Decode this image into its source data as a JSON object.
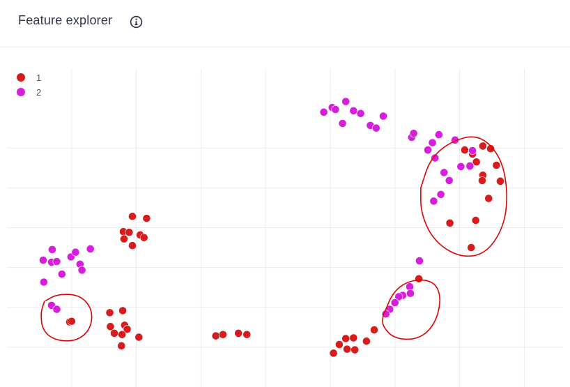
{
  "header": {
    "title": "Feature explorer",
    "info_icon": "info-circle-icon"
  },
  "colors": {
    "series_1": "#d61c1c",
    "series_2": "#d61fdc",
    "annotation": "#e00000",
    "grid": "#ebebeb",
    "title": "#2f3551"
  },
  "chart_data": {
    "type": "scatter",
    "title": "",
    "xlabel": "",
    "ylabel": "",
    "xlim": [
      0,
      860
    ],
    "ylim": [
      0,
      480
    ],
    "grid": true,
    "tick_labels_visible": false,
    "legend": {
      "placement": "top-left",
      "entries": [
        "1",
        "2"
      ]
    },
    "series": [
      {
        "name": "1",
        "x": [
          194,
          216,
          180,
          189,
          206,
          181,
          212,
          194,
          97,
          100,
          159,
          179,
          182,
          160,
          166,
          186,
          178,
          204,
          177,
          323,
          334,
          358,
          371,
          505,
          514,
          524,
          536,
          526,
          538,
          556,
          568,
          637,
          708,
          736,
          748,
          720,
          726,
          716,
          757,
          736,
          735,
          763,
          745,
          685,
          725,
          718
        ],
        "y": [
          257,
          254,
          234,
          233,
          229,
          223,
          225,
          213,
          98,
          99,
          112,
          115,
          93,
          91,
          81,
          87,
          79,
          75,
          62,
          77,
          79,
          81,
          79,
          51,
          64,
          73,
          74,
          57,
          56,
          69,
          86,
          163,
          357,
          363,
          359,
          351,
          339,
          332,
          334,
          319,
          311,
          310,
          284,
          247,
          251,
          210
        ]
      },
      {
        "name": "2",
        "x": [
          490,
          503,
          508,
          524,
          536,
          547,
          519,
          562,
          571,
          582,
          626,
          629,
          658,
          668,
          651,
          662,
          693,
          720,
          702,
          716,
          676,
          684,
          671,
          660,
          56,
          70,
          69,
          77,
          99,
          106,
          129,
          113,
          85,
          116,
          57,
          69,
          77,
          638,
          623,
          624,
          612,
          606,
          600,
          592,
          586
        ],
        "y": [
          414,
          421,
          418,
          430,
          416,
          412,
          397,
          394,
          390,
          408,
          376,
          382,
          368,
          380,
          357,
          345,
          372,
          356,
          332,
          333,
          323,
          311,
          290,
          280,
          191,
          207,
          188,
          189,
          196,
          203,
          208,
          185,
          170,
          176,
          158,
          123,
          117,
          190,
          151,
          141,
          138,
          136,
          127,
          117,
          110
        ]
      }
    ],
    "annotations": [
      {
        "type": "hand-drawn-circle",
        "label": ""
      },
      {
        "type": "hand-drawn-circle",
        "label": ""
      },
      {
        "type": "hand-drawn-circle",
        "label": ""
      }
    ]
  }
}
